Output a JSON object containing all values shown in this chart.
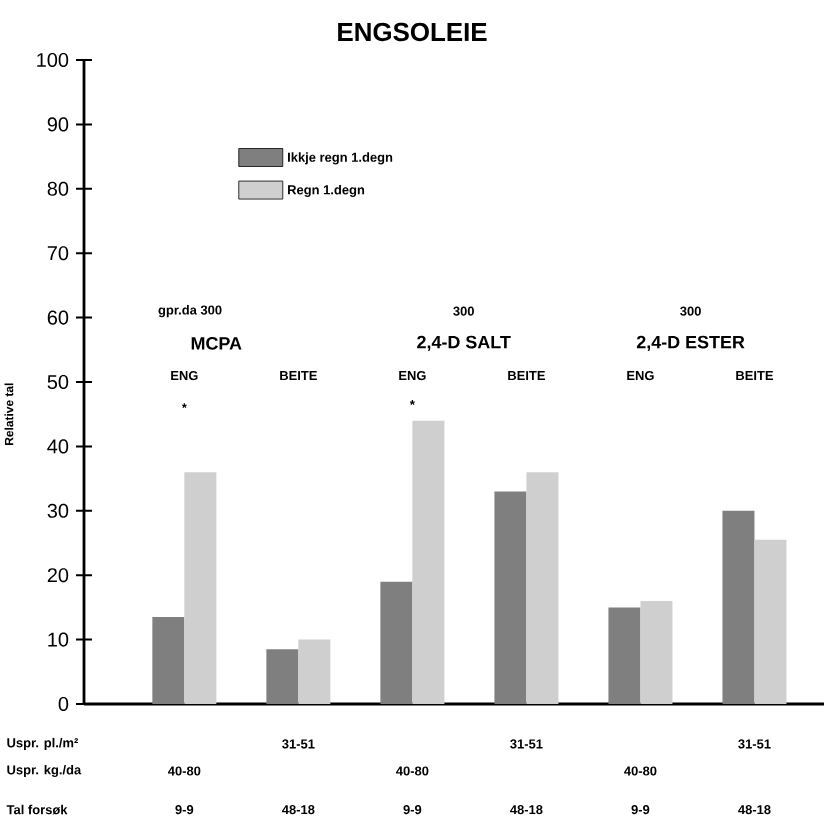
{
  "chart_data": {
    "type": "bar",
    "title": "ENGSOLEIE",
    "ylabel": "Relative tal",
    "categories": [
      "ENG",
      "BEITE",
      "ENG",
      "BEITE",
      "ENG",
      "BEITE"
    ],
    "series": [
      {
        "name": "Ikkje regn  1.degn",
        "color": "#7f7f7f",
        "values": [
          13.5,
          8.5,
          19,
          33,
          15,
          30
        ]
      },
      {
        "name": "Regn  1.degn",
        "color": "#cfcfcf",
        "values": [
          36,
          10,
          44,
          36,
          16,
          25.5
        ]
      }
    ],
    "ylim": [
      0,
      100
    ],
    "yticks": [
      0,
      10,
      20,
      30,
      40,
      50,
      60,
      70,
      80,
      90,
      100
    ],
    "legend": "top left",
    "annotations": [
      "gpr.da 300",
      "MCPA",
      "300",
      "2,4-D SALT",
      "300",
      "2,4-D ESTER",
      "*",
      "*",
      "Uspr. pl./m²",
      "31-51",
      "31-51",
      "31-51",
      "Uspr. kg./da",
      "40-80",
      "40-80",
      "40-80",
      "Tal forsøk",
      "9-9",
      "48-18",
      "9-9",
      "48-18",
      "9-9",
      "48-18"
    ]
  }
}
